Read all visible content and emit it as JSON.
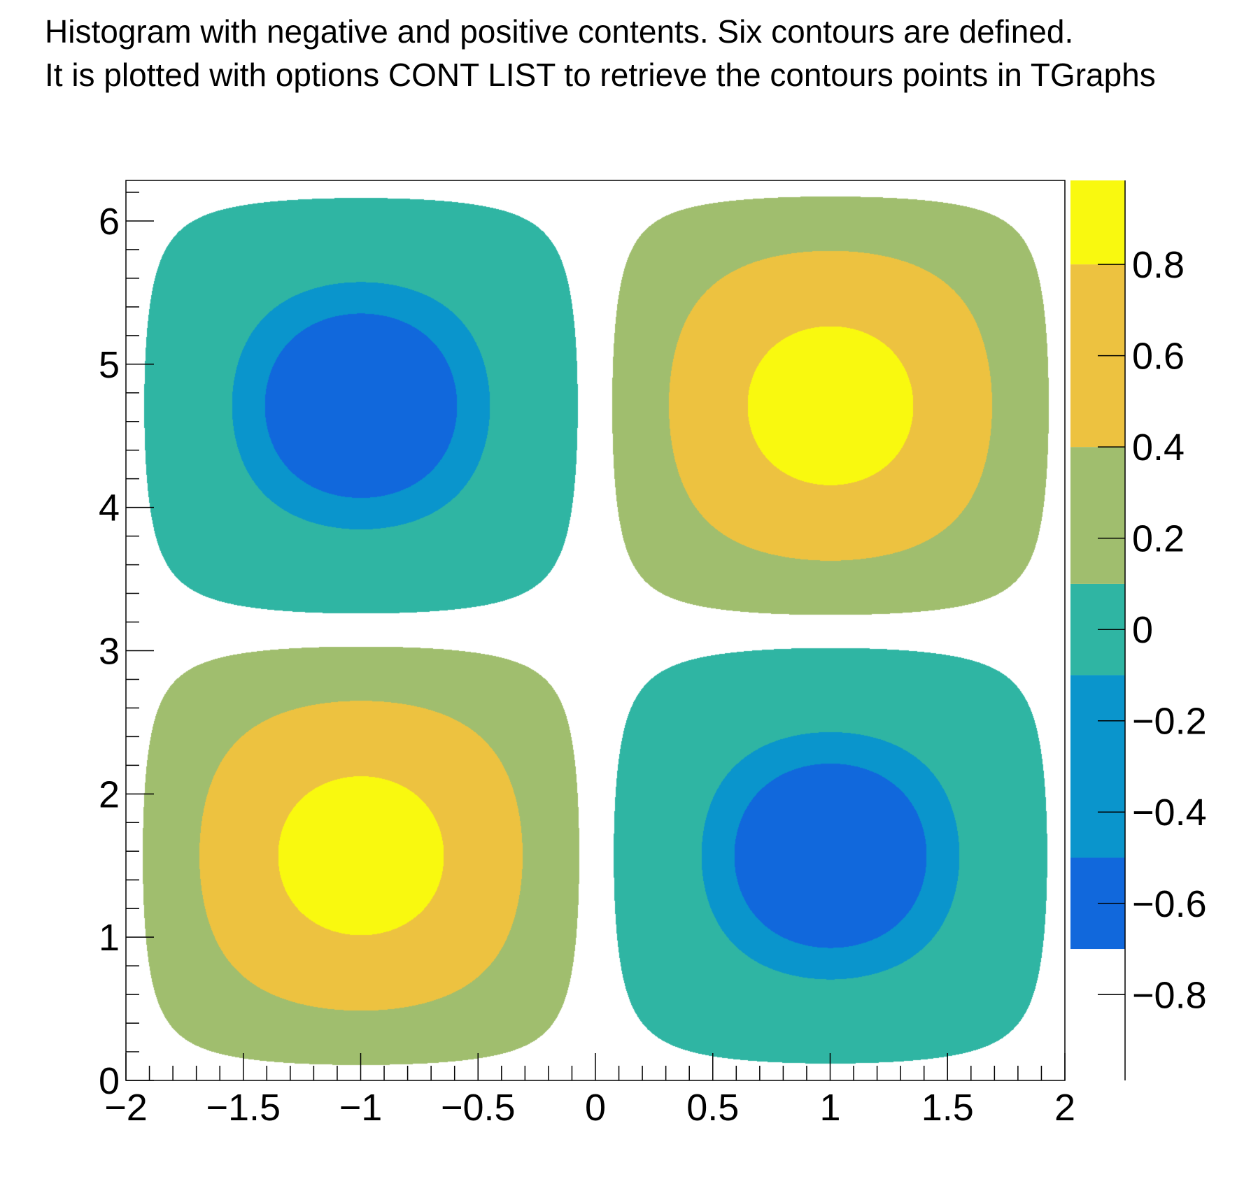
{
  "chart_data": {
    "type": "contour",
    "title_lines": [
      "Histogram with negative and positive contents. Six contours are defined.",
      "It is plotted with options CONT LIST to retrieve the contours points in TGraphs"
    ],
    "xlabel": "",
    "ylabel": "",
    "xlim": [
      -2,
      2
    ],
    "ylim": [
      0,
      6.283
    ],
    "zlim": [
      -0.988,
      0.984
    ],
    "x_ticks": [
      "-2",
      "-1.5",
      "-1",
      "-0.5",
      "0",
      "0.5",
      "1",
      "1.5",
      "2"
    ],
    "x_tick_values": [
      -2,
      -1.5,
      -1,
      -0.5,
      0,
      0.5,
      1,
      1.5,
      2
    ],
    "y_ticks": [
      "0",
      "1",
      "2",
      "3",
      "4",
      "5",
      "6"
    ],
    "y_tick_values": [
      0,
      1,
      2,
      3,
      4,
      5,
      6
    ],
    "z_ticks": [
      "-0.8",
      "-0.6",
      "-0.4",
      "-0.2",
      "0",
      "0.2",
      "0.4",
      "0.6",
      "0.8"
    ],
    "z_tick_values": [
      -0.8,
      -0.6,
      -0.4,
      -0.2,
      0,
      0.2,
      0.4,
      0.6,
      0.8
    ],
    "contour_levels": [
      -0.7,
      -0.5,
      -0.1,
      0.1,
      0.4,
      0.8
    ],
    "band_colors": [
      "#1168dc",
      "#0a95cc",
      "#2fb5a3",
      "#a0be6e",
      "#edc240",
      "#f9f90f"
    ],
    "extrema": [
      {
        "x": -1,
        "y": 1.57,
        "sign": "positive"
      },
      {
        "x": 1,
        "y": 1.57,
        "sign": "negative"
      },
      {
        "x": -1,
        "y": 4.71,
        "sign": "negative"
      },
      {
        "x": 1,
        "y": 4.71,
        "sign": "positive"
      }
    ],
    "grid": false,
    "legend": "color palette on right"
  }
}
